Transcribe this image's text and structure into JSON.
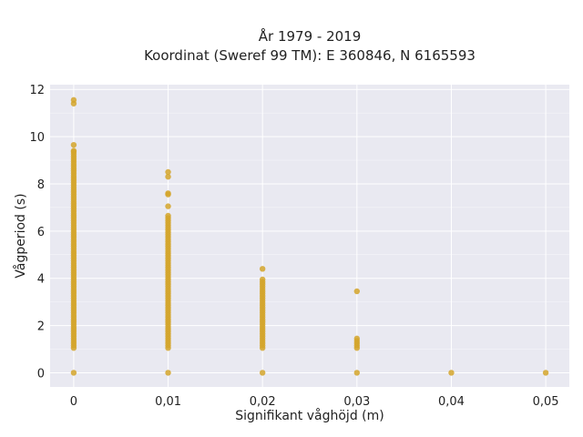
{
  "chart_data": {
    "type": "scatter",
    "title_line1": "År 1979 - 2019",
    "title_line2": "Koordinat (Sweref 99 TM): E 360846, N 6165593",
    "xlabel": "Signifikant våghöjd (m)",
    "ylabel": "Vågperiod (s)",
    "xlim": [
      -0.0025,
      0.0525
    ],
    "ylim": [
      -0.6,
      12.2
    ],
    "x_ticks": [
      0,
      0.01,
      0.02,
      0.03,
      0.04,
      0.05
    ],
    "x_tick_labels": [
      "0",
      "0,01",
      "0,02",
      "0,03",
      "0,04",
      "0,05"
    ],
    "y_ticks": [
      0,
      2,
      4,
      6,
      8,
      10,
      12
    ],
    "y_tick_labels": [
      "0",
      "2",
      "4",
      "6",
      "8",
      "10",
      "12"
    ],
    "grid": true,
    "colors": {
      "marker": "#D4A42A",
      "plot_bg": "#E9E9F1",
      "grid": "#FFFFFF"
    },
    "series": [
      {
        "x_groups": [
          {
            "x": 0,
            "band": [
              1.05,
              9.35
            ],
            "extra_y": [
              0,
              9.4,
              9.65,
              11.4,
              11.55
            ]
          },
          {
            "x": 0.01,
            "band": [
              1.05,
              6.7
            ],
            "extra_y": [
              0,
              7.05,
              7.55,
              7.6,
              8.3,
              8.5
            ]
          },
          {
            "x": 0.02,
            "band": [
              1.05,
              4.0
            ],
            "extra_y": [
              0,
              4.4
            ]
          },
          {
            "x": 0.03,
            "band": [
              1.05,
              1.5
            ],
            "extra_y": [
              0,
              3.45
            ]
          },
          {
            "x": 0.04,
            "band": null,
            "extra_y": [
              0
            ]
          },
          {
            "x": 0.05,
            "band": null,
            "extra_y": [
              0
            ]
          }
        ]
      }
    ]
  }
}
